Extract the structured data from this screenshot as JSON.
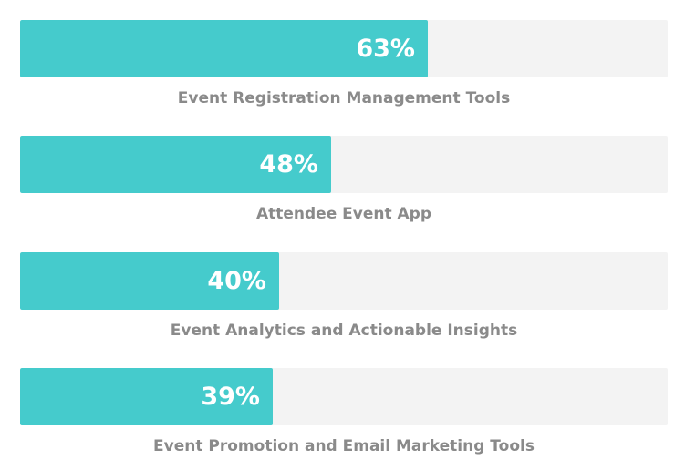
{
  "chart_data": {
    "type": "bar",
    "orientation": "horizontal",
    "categories": [
      "Event Registration Management Tools",
      "Attendee Event App",
      "Event Analytics and Actionable Insights",
      "Event Promotion and Email Marketing Tools"
    ],
    "values": [
      63,
      48,
      40,
      39
    ],
    "value_labels": [
      "63%",
      "48%",
      "40%",
      "39%"
    ],
    "xlim": [
      0,
      100
    ],
    "title": "",
    "xlabel": "",
    "ylabel": "",
    "grid": false,
    "colors": {
      "fill": "#45cbcc",
      "track": "#f3f3f3",
      "value_text": "#ffffff",
      "label_text": "#8a8a8a"
    }
  }
}
